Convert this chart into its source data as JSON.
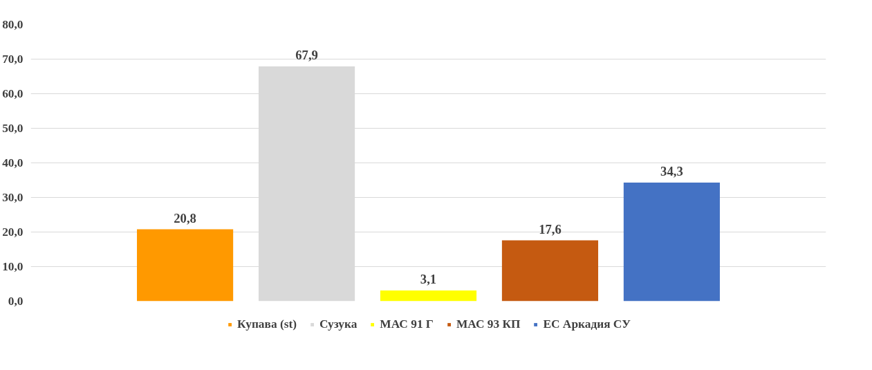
{
  "chart_data": {
    "type": "bar",
    "categories": [
      null
    ],
    "series": [
      {
        "name": "Купава (st)",
        "color": "#ff9900",
        "values": [
          20.8
        ],
        "value_labels": [
          "20,8"
        ]
      },
      {
        "name": "Сузука",
        "color": "#d9d9d9",
        "values": [
          67.9
        ],
        "value_labels": [
          "67,9"
        ]
      },
      {
        "name": "МАС 91 Г",
        "color": "#ffff00",
        "values": [
          3.1
        ],
        "value_labels": [
          "3,1"
        ]
      },
      {
        "name": "МАС 93 КП",
        "color": "#c55a11",
        "values": [
          17.6
        ],
        "value_labels": [
          "17,6"
        ]
      },
      {
        "name": "ЕС Аркадия СУ",
        "color": "#4472c4",
        "values": [
          34.3
        ],
        "value_labels": [
          "34,3"
        ]
      }
    ],
    "ylim": [
      0,
      80
    ],
    "yticks": [
      {
        "value": 0,
        "label": "0,0"
      },
      {
        "value": 10,
        "label": "10,0"
      },
      {
        "value": 20,
        "label": "20,0"
      },
      {
        "value": 30,
        "label": "30,0"
      },
      {
        "value": 40,
        "label": "40,0"
      },
      {
        "value": 50,
        "label": "50,0"
      },
      {
        "value": 60,
        "label": "60,0"
      },
      {
        "value": 70,
        "label": "70,0"
      },
      {
        "value": 80,
        "label": "80,0"
      }
    ],
    "grid": "y",
    "legend": "bottom"
  }
}
